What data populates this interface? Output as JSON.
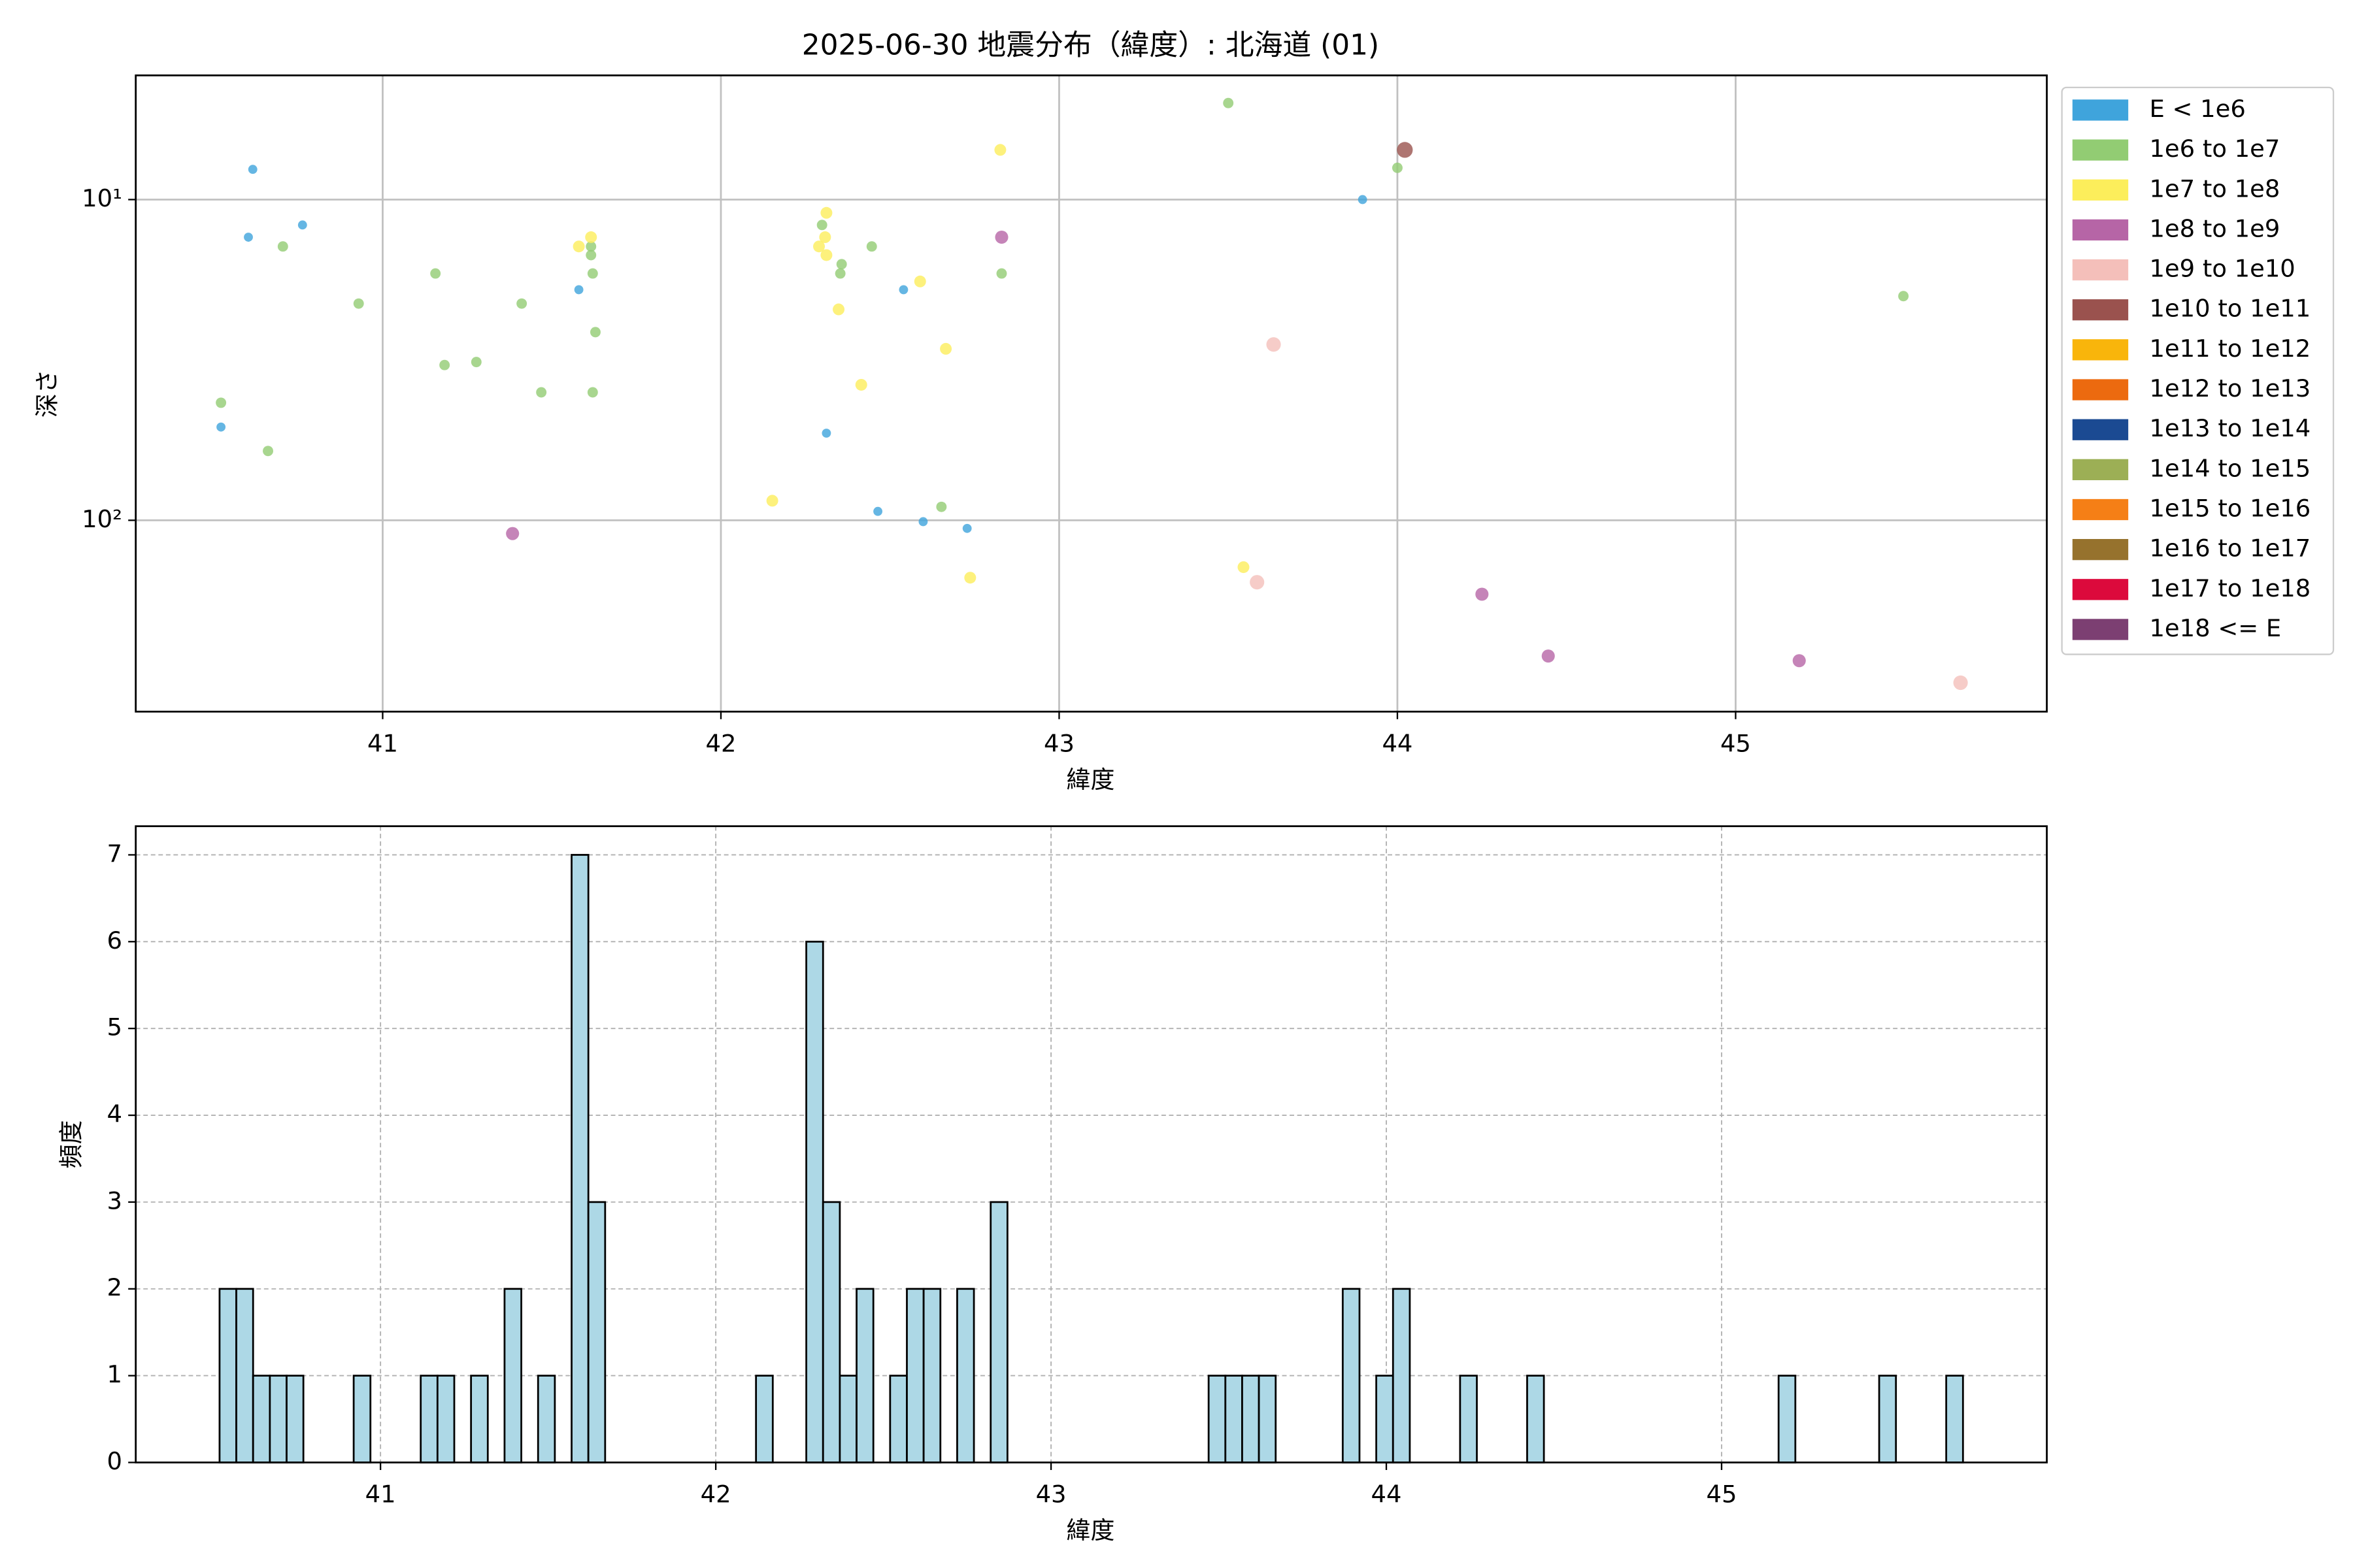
{
  "chart_data": [
    {
      "type": "scatter",
      "title": "2025-06-30 地震分布（緯度）: 北海道 (01)",
      "xlabel": "緯度",
      "ylabel": "深さ",
      "xlim": [
        40.27,
        45.92
      ],
      "xticks": [
        41,
        42,
        43,
        44,
        45
      ],
      "ylim": [
        395,
        4.1
      ],
      "ylog": true,
      "yticks": [
        {
          "value": 10,
          "label": "10¹"
        },
        {
          "value": 100,
          "label": "10²"
        }
      ],
      "grid": true,
      "legend": "outside right",
      "series": [
        {
          "name": "E < 1e6",
          "color": "#3fa4dc",
          "x": [
            40.616,
            40.603,
            40.763,
            40.522,
            41.58,
            42.312,
            42.464,
            42.54,
            42.598,
            42.728,
            43.897
          ],
          "values": [
            8.05,
            13.1,
            12.0,
            51.2,
            19.1,
            53.5,
            93.8,
            19.1,
            101,
            106,
            10.0
          ]
        },
        {
          "name": "1e6 to 1e7",
          "color": "#92cc73",
          "x": [
            40.522,
            40.661,
            40.705,
            40.929,
            41.156,
            41.183,
            41.277,
            41.411,
            41.469,
            41.616,
            41.616,
            41.621,
            41.629,
            41.621,
            42.299,
            42.353,
            42.357,
            42.446,
            42.652,
            42.83,
            43.5,
            44.0,
            45.496
          ],
          "values": [
            43.0,
            60.8,
            14.0,
            21.1,
            17.0,
            32.8,
            32.1,
            21.1,
            39.9,
            14.0,
            14.9,
            17.0,
            25.9,
            39.9,
            12.0,
            17.0,
            15.9,
            14.0,
            90.8,
            17.0,
            5.0,
            7.96,
            20.0
          ]
        },
        {
          "name": "1e7 to 1e8",
          "color": "#fcee5b",
          "x": [
            41.58,
            41.616,
            42.312,
            42.308,
            42.29,
            42.312,
            42.348,
            42.415,
            42.589,
            42.665,
            42.826,
            42.152,
            42.737,
            43.545
          ],
          "values": [
            14.0,
            13.1,
            11.0,
            13.1,
            14.0,
            14.9,
            22.0,
            37.8,
            18.0,
            29.2,
            7.0,
            86.9,
            151,
            140
          ]
        },
        {
          "name": "1e8 to 1e9",
          "color": "#b665a6",
          "x": [
            42.83,
            41.384,
            44.25,
            44.446,
            45.188
          ],
          "values": [
            13.1,
            110,
            170,
            265,
            274
          ]
        },
        {
          "name": "1e9 to 1e10",
          "color": "#f4bfba",
          "x": [
            43.634,
            43.585,
            45.665
          ],
          "values": [
            28.3,
            156,
            321
          ]
        },
        {
          "name": "1e10 to 1e11",
          "color": "#9a524e",
          "x": [
            44.022
          ],
          "values": [
            7.0
          ]
        },
        {
          "name": "1e11 to 1e12",
          "color": "#f9b50b",
          "x": [],
          "values": []
        },
        {
          "name": "1e12 to 1e13",
          "color": "#ec6a0f",
          "x": [],
          "values": []
        },
        {
          "name": "1e13 to 1e14",
          "color": "#1b4a92",
          "x": [],
          "values": []
        },
        {
          "name": "1e14 to 1e15",
          "color": "#9caf55",
          "x": [],
          "values": []
        },
        {
          "name": "1e15 to 1e16",
          "color": "#f57f16",
          "x": [],
          "values": []
        },
        {
          "name": "1e16 to 1e17",
          "color": "#96722d",
          "x": [],
          "values": []
        },
        {
          "name": "1e17 to 1e18",
          "color": "#dc0a3c",
          "x": [],
          "values": []
        },
        {
          "name": "1e18 <= E",
          "color": "#7c3f72",
          "x": [],
          "values": []
        }
      ]
    },
    {
      "type": "histogram",
      "xlabel": "緯度",
      "ylabel": "頻度",
      "color": "#add8e6",
      "edgecolor": "#000000",
      "xlim": [
        40.27,
        45.97
      ],
      "xticks": [
        41,
        42,
        43,
        44,
        45
      ],
      "ylim": [
        0,
        7.33
      ],
      "yticks": [
        0,
        1,
        2,
        3,
        4,
        5,
        6,
        7
      ],
      "grid": true,
      "bins": [
        40.52,
        40.57,
        40.62,
        40.67,
        40.72,
        40.77,
        40.82,
        40.87,
        40.92,
        40.97,
        41.02,
        41.07,
        41.12,
        41.17,
        41.22,
        41.27,
        41.32,
        41.37,
        41.42,
        41.47,
        41.52,
        41.57,
        41.62,
        41.67,
        41.72,
        41.77,
        41.82,
        41.87,
        41.92,
        41.97,
        42.02,
        42.07,
        42.12,
        42.17,
        42.22,
        42.27,
        42.32,
        42.37,
        42.42,
        42.47,
        42.52,
        42.57,
        42.62,
        42.67,
        42.72,
        42.77,
        42.82,
        42.87,
        42.92,
        42.97,
        43.02,
        43.07,
        43.12,
        43.17,
        43.22,
        43.27,
        43.32,
        43.37,
        43.42,
        43.47,
        43.52,
        43.57,
        43.62,
        43.67,
        43.72,
        43.77,
        43.82,
        43.87,
        43.92,
        43.97,
        44.02,
        44.07,
        44.12,
        44.17,
        44.22,
        44.27,
        44.32,
        44.37,
        44.42,
        44.47,
        44.52,
        44.57,
        44.62,
        44.67,
        44.72,
        44.77,
        44.82,
        44.87,
        44.92,
        44.97,
        45.02,
        45.07,
        45.12,
        45.17,
        45.22,
        45.27,
        45.32,
        45.37,
        45.42,
        45.47,
        45.52,
        45.57,
        45.62,
        45.67,
        45.72
      ],
      "values": [
        2,
        2,
        1,
        1,
        1,
        0,
        0,
        0,
        1,
        0,
        0,
        0,
        1,
        1,
        0,
        1,
        0,
        2,
        0,
        1,
        0,
        7,
        3,
        0,
        0,
        0,
        0,
        0,
        0,
        0,
        0,
        0,
        1,
        0,
        0,
        6,
        3,
        1,
        2,
        0,
        1,
        2,
        2,
        0,
        2,
        0,
        3,
        0,
        0,
        0,
        0,
        0,
        0,
        0,
        0,
        0,
        0,
        0,
        0,
        1,
        1,
        1,
        1,
        0,
        0,
        0,
        0,
        2,
        0,
        1,
        2,
        0,
        0,
        0,
        1,
        0,
        0,
        0,
        1,
        0,
        0,
        0,
        0,
        0,
        0,
        0,
        0,
        0,
        0,
        0,
        0,
        0,
        0,
        1,
        0,
        0,
        0,
        0,
        0,
        1,
        0,
        0,
        0,
        1
      ]
    }
  ]
}
